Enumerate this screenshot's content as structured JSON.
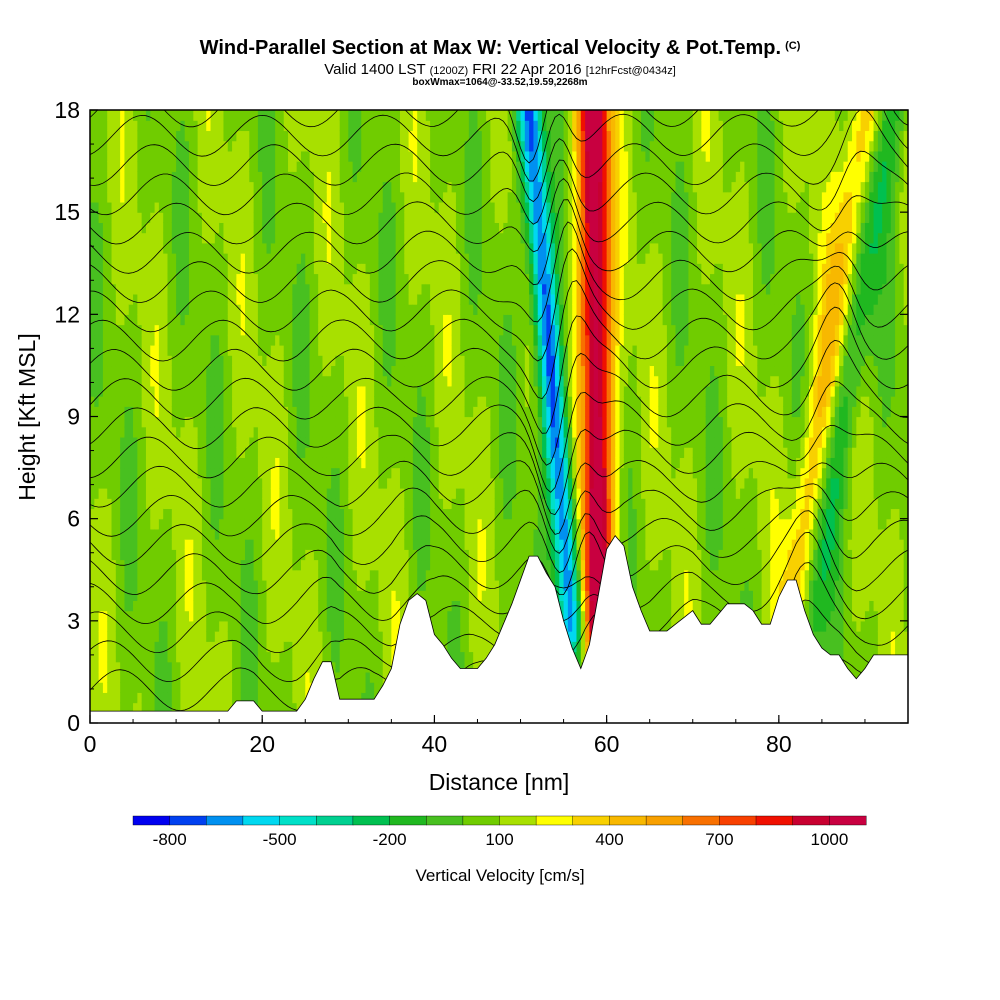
{
  "title": {
    "main": "Wind-Parallel Section at Max W: Vertical Velocity & Pot.Temp.",
    "copyright": "(C)",
    "valid_prefix": "Valid 1400 LST",
    "valid_utc": "(1200Z)",
    "valid_date": "FRI 22 Apr 2016",
    "forecast": "[12hrFcst@0434z]",
    "box_info": "boxWmax=1064@-33.52,19.59,2268m"
  },
  "chart_data": {
    "type": "heatmap",
    "xlabel": "Distance [nm]",
    "ylabel": "Height [Kft MSL]",
    "xlim": [
      0,
      95
    ],
    "ylim": [
      0,
      18
    ],
    "x_ticks": [
      0,
      20,
      40,
      60,
      80
    ],
    "y_ticks": [
      0,
      3,
      6,
      9,
      12,
      15,
      18
    ],
    "colorbar": {
      "label": "Vertical Velocity [cm/s]",
      "tick_labels": [
        "-800",
        "-500",
        "-200",
        "100",
        "400",
        "700",
        "1000"
      ],
      "tick_values": [
        -800,
        -500,
        -200,
        100,
        400,
        700,
        1000
      ],
      "levels": [
        -900,
        -800,
        -700,
        -600,
        -500,
        -400,
        -300,
        -200,
        -100,
        0,
        100,
        200,
        300,
        400,
        500,
        600,
        700,
        800,
        900,
        1000,
        1100
      ],
      "colors": [
        "#0000f0",
        "#0040f0",
        "#0090f0",
        "#00d8f0",
        "#00e0c8",
        "#00d090",
        "#00c050",
        "#20b820",
        "#48c020",
        "#70cc00",
        "#a8e000",
        "#ffff00",
        "#f8d000",
        "#f8b800",
        "#f8a000",
        "#f87000",
        "#f84000",
        "#f01000",
        "#c80030",
        "#c80040"
      ]
    },
    "terrain_kft": [
      [
        0,
        0.35
      ],
      [
        16,
        0.35
      ],
      [
        17,
        0.65
      ],
      [
        19,
        0.65
      ],
      [
        20,
        0.35
      ],
      [
        24,
        0.35
      ],
      [
        25,
        0.7
      ],
      [
        26,
        1.3
      ],
      [
        27,
        1.8
      ],
      [
        28,
        1.8
      ],
      [
        29,
        0.7
      ],
      [
        33,
        0.7
      ],
      [
        34,
        1.1
      ],
      [
        35,
        1.6
      ],
      [
        36,
        2.9
      ],
      [
        37,
        3.6
      ],
      [
        38,
        3.8
      ],
      [
        39,
        3.6
      ],
      [
        40,
        2.6
      ],
      [
        41,
        2.3
      ],
      [
        42,
        1.9
      ],
      [
        43,
        1.6
      ],
      [
        45,
        1.6
      ],
      [
        46,
        1.9
      ],
      [
        47,
        2.3
      ],
      [
        48,
        2.9
      ],
      [
        49,
        3.5
      ],
      [
        50,
        4.2
      ],
      [
        51,
        4.9
      ],
      [
        52,
        4.9
      ],
      [
        53,
        4.4
      ],
      [
        54,
        4.0
      ],
      [
        55,
        3.0
      ],
      [
        56,
        2.2
      ],
      [
        57,
        1.6
      ],
      [
        58,
        2.3
      ],
      [
        59,
        3.7
      ],
      [
        60,
        5.1
      ],
      [
        61,
        5.5
      ],
      [
        62,
        5.2
      ],
      [
        63,
        4.0
      ],
      [
        64,
        3.3
      ],
      [
        65,
        2.7
      ],
      [
        67,
        2.7
      ],
      [
        68,
        2.9
      ],
      [
        69,
        3.1
      ],
      [
        70,
        3.3
      ],
      [
        71,
        2.9
      ],
      [
        72,
        2.9
      ],
      [
        73,
        3.2
      ],
      [
        74,
        3.5
      ],
      [
        76,
        3.5
      ],
      [
        77,
        3.3
      ],
      [
        78,
        2.9
      ],
      [
        79,
        2.9
      ],
      [
        80,
        3.7
      ],
      [
        81,
        4.2
      ],
      [
        82,
        4.2
      ],
      [
        83,
        3.3
      ],
      [
        84,
        2.6
      ],
      [
        85,
        2.2
      ],
      [
        86,
        2.0
      ],
      [
        87,
        2.0
      ],
      [
        88,
        1.6
      ],
      [
        89,
        1.3
      ],
      [
        90,
        1.6
      ],
      [
        91,
        2.0
      ],
      [
        95,
        2.0
      ]
    ],
    "velocity_features": [
      {
        "kind": "downdraft",
        "x_bottom_nm": 56,
        "x_top_nm": 51,
        "y_from_kft": 3,
        "y_to_kft": 18,
        "peak_cms": -850
      },
      {
        "kind": "updraft",
        "x_bottom_nm": 59,
        "x_top_nm": 58.5,
        "y_from_kft": 3,
        "y_to_kft": 18,
        "peak_cms": 1064
      },
      {
        "kind": "updraft",
        "x_bottom_nm": 82,
        "x_top_nm": 90,
        "y_from_kft": 4,
        "y_to_kft": 18,
        "peak_cms": 350
      },
      {
        "kind": "downdraft",
        "x_bottom_nm": 83,
        "x_top_nm": 93,
        "y_from_kft": 2,
        "y_to_kft": 18,
        "peak_cms": -280
      }
    ],
    "theta_contours_K": [
      300,
      302,
      304,
      306,
      308,
      310,
      312,
      314,
      316,
      318,
      320,
      322,
      324,
      326,
      328,
      330,
      332,
      334,
      336,
      338,
      340
    ]
  }
}
